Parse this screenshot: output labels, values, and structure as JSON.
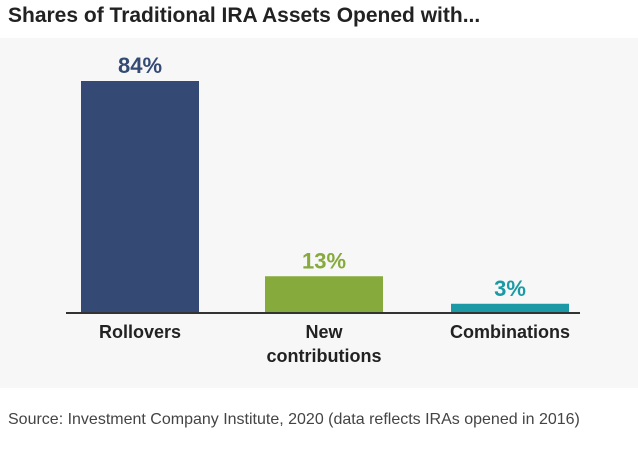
{
  "title": "Shares of Traditional IRA Assets Opened with...",
  "source": "Source: Investment Company Institute, 2020 (data reflects IRAs opened in 2016)",
  "chart_data": {
    "type": "bar",
    "title": "Shares of Traditional IRA Assets Opened with...",
    "xlabel": "",
    "ylabel": "",
    "ylim": [
      0,
      100
    ],
    "grid": false,
    "categories": [
      [
        "Rollovers"
      ],
      [
        "New",
        "contributions"
      ],
      [
        "Combinations"
      ]
    ],
    "values": [
      84,
      13,
      3
    ],
    "value_labels": [
      "84%",
      "13%",
      "3%"
    ],
    "colors": [
      "#344a74",
      "#86aa3c",
      "#1b9aa6"
    ]
  }
}
